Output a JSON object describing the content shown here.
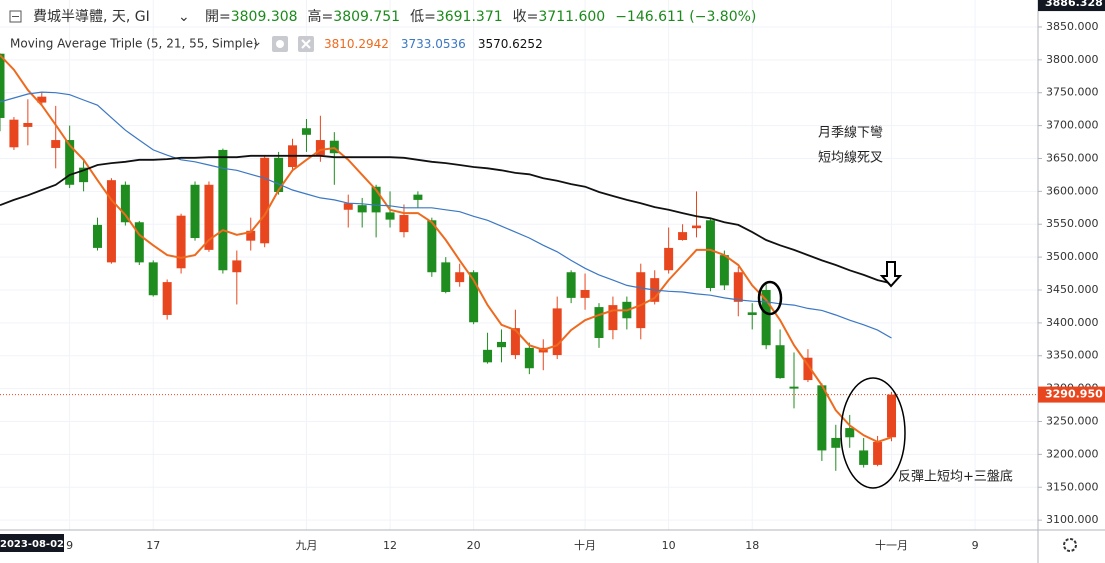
{
  "chart_data": {
    "type": "candlestick",
    "header": {
      "symbol": "費城半導體, 天, GI",
      "quote": [
        {
          "label": "開=",
          "value": "3809.308"
        },
        {
          "label": "高=",
          "value": "3809.751"
        },
        {
          "label": "低=",
          "value": "3691.371"
        },
        {
          "label": "收=",
          "value": "3711.600"
        }
      ],
      "change": "−146.611 (−3.80%)",
      "color": "#1b8a1b"
    },
    "indicator": {
      "title": "Moving Average Triple (5, 21, 55, Simple)",
      "readouts": [
        "3810.2942",
        "3733.0536",
        "3570.6252"
      ]
    },
    "categories": [
      "2023-08-02",
      null,
      null,
      null,
      null,
      "9",
      null,
      null,
      null,
      null,
      null,
      "17",
      null,
      null,
      null,
      null,
      null,
      null,
      null,
      null,
      null,
      null,
      "九月",
      null,
      null,
      null,
      null,
      null,
      "12",
      null,
      null,
      null,
      null,
      null,
      "20",
      null,
      null,
      null,
      null,
      null,
      null,
      null,
      "十月",
      null,
      null,
      null,
      null,
      null,
      "10",
      null,
      null,
      null,
      null,
      null,
      "18",
      null,
      null,
      null,
      null,
      null,
      null,
      null,
      null,
      null,
      "十一月",
      null,
      null,
      null,
      null,
      null,
      "9"
    ],
    "open": [
      3809.308,
      3667,
      3698,
      3735,
      3666,
      3678,
      3636,
      3549,
      3492,
      3610,
      3553,
      3492,
      3412,
      3483,
      3610,
      3511,
      3663,
      3477,
      3525,
      3521,
      3651,
      3637,
      3696,
      3655,
      3677,
      3572,
      3579,
      3607,
      3568,
      3538,
      3595,
      3556,
      3492,
      3462,
      3477,
      3359,
      3371,
      3351,
      3362,
      3355,
      3351,
      3477,
      3438,
      3424,
      3389,
      3432,
      3392,
      3432,
      3480,
      3526,
      3544,
      3556,
      3503,
      3432,
      3416,
      3450,
      3366,
      3303,
      3313,
      3305,
      3225,
      3240,
      3206,
      3184,
      3226,
      null,
      null,
      null,
      null,
      null,
      null
    ],
    "high": [
      3809.751,
      3713,
      3740,
      3750,
      3730,
      3700,
      3650,
      3560,
      3620,
      3615,
      3555,
      3495,
      3466,
      3566,
      3615,
      3615,
      3665,
      3510,
      3560,
      3655,
      3660,
      3680,
      3710,
      3715,
      3690,
      3595,
      3590,
      3610,
      3600,
      3580,
      3600,
      3560,
      3500,
      3490,
      3480,
      3385,
      3390,
      3420,
      3370,
      3375,
      3440,
      3480,
      3475,
      3430,
      3440,
      3440,
      3490,
      3480,
      3545,
      3550,
      3600,
      3560,
      3510,
      3485,
      3430,
      3460,
      3390,
      3355,
      3360,
      3308,
      3245,
      3260,
      3225,
      3228,
      3295,
      null,
      null,
      null,
      null,
      null,
      null
    ],
    "low": [
      3691.371,
      3663,
      3670,
      3730,
      3635,
      3605,
      3600,
      3510,
      3490,
      3548,
      3488,
      3440,
      3405,
      3475,
      3525,
      3508,
      3475,
      3428,
      3510,
      3515,
      3595,
      3630,
      3660,
      3645,
      3610,
      3545,
      3545,
      3530,
      3545,
      3530,
      3575,
      3470,
      3445,
      3455,
      3398,
      3338,
      3340,
      3345,
      3322,
      3328,
      3345,
      3430,
      3420,
      3362,
      3375,
      3390,
      3375,
      3428,
      3475,
      3525,
      3530,
      3448,
      3450,
      3410,
      3390,
      3360,
      3315,
      3270,
      3310,
      3190,
      3175,
      3210,
      3180,
      3182,
      3220,
      null,
      null,
      null,
      null,
      null,
      null
    ],
    "close": [
      3711.6,
      3709,
      3704,
      3744,
      3678,
      3610,
      3614,
      3514,
      3617,
      3553,
      3492,
      3442,
      3462,
      3563,
      3529,
      3610,
      3480,
      3495,
      3540,
      3651,
      3599,
      3670,
      3686,
      3678,
      3658,
      3582,
      3568,
      3568,
      3557,
      3564,
      3587,
      3477,
      3447,
      3477,
      3401,
      3340,
      3363,
      3392,
      3331,
      3362,
      3422,
      3438,
      3450,
      3377,
      3427,
      3407,
      3477,
      3468,
      3514,
      3538,
      3548,
      3453,
      3457,
      3477,
      3412,
      3366,
      3316,
      3300,
      3347,
      3206,
      3210,
      3226,
      3184,
      3219,
      3290.95,
      null,
      null,
      null,
      null,
      null,
      null
    ],
    "up_color": "#e8461e",
    "down_color": "#1e8c1e",
    "series": [
      {
        "color": "#ee6a1e",
        "values": [
          3807,
          3785,
          3754,
          3731,
          3701,
          3670,
          3648,
          3617,
          3587,
          3564,
          3534,
          3518,
          3503,
          3499,
          3503,
          3526,
          3541,
          3534,
          3538,
          3564,
          3602,
          3632,
          3648,
          3663,
          3666,
          3648,
          3625,
          3602,
          3572,
          3567,
          3567,
          3553,
          3526,
          3495,
          3465,
          3427,
          3397,
          3389,
          3366,
          3359,
          3366,
          3389,
          3404,
          3412,
          3419,
          3419,
          3427,
          3438,
          3465,
          3488,
          3511,
          3511,
          3503,
          3488,
          3457,
          3435,
          3404,
          3366,
          3336,
          3305,
          3267,
          3244,
          3229,
          3219,
          3226,
          null,
          null,
          null,
          null,
          null,
          null
        ]
      },
      {
        "color": "#3b78c4",
        "values": [
          3736,
          3742,
          3748,
          3751,
          3750,
          3747,
          3739,
          3731,
          3712,
          3693,
          3678,
          3663,
          3655,
          3648,
          3645,
          3640,
          3635,
          3632,
          3626,
          3620,
          3611,
          3602,
          3596,
          3590,
          3587,
          3582,
          3581,
          3579,
          3578,
          3575,
          3575,
          3575,
          3572,
          3569,
          3562,
          3556,
          3547,
          3538,
          3529,
          3518,
          3508,
          3495,
          3483,
          3473,
          3465,
          3457,
          3453,
          3450,
          3448,
          3447,
          3444,
          3442,
          3438,
          3435,
          3433,
          3432,
          3429,
          3427,
          3422,
          3419,
          3412,
          3404,
          3397,
          3389,
          3377,
          null,
          null,
          null,
          null,
          null,
          null
        ]
      },
      {
        "color": "#111111",
        "values": [
          3579,
          3587,
          3594,
          3602,
          3610,
          3625,
          3632,
          3640,
          3643,
          3645,
          3648,
          3648,
          3649,
          3651,
          3651,
          3652,
          3652,
          3652,
          3654,
          3654,
          3654,
          3654,
          3654,
          3654,
          3652,
          3652,
          3652,
          3652,
          3652,
          3651,
          3648,
          3645,
          3643,
          3640,
          3637,
          3635,
          3632,
          3628,
          3626,
          3620,
          3616,
          3611,
          3607,
          3599,
          3593,
          3587,
          3582,
          3576,
          3572,
          3567,
          3562,
          3559,
          3553,
          3549,
          3538,
          3526,
          3518,
          3511,
          3503,
          3495,
          3488,
          3480,
          3473,
          3465,
          3460,
          null,
          null,
          null,
          null,
          null,
          null
        ]
      }
    ],
    "ylim": [
      3085,
      3891
    ],
    "yticks": [
      {
        "value": 3100,
        "label": "3100.000"
      },
      {
        "value": 3150,
        "label": "3150.000"
      },
      {
        "value": 3200,
        "label": "3200.000"
      },
      {
        "value": 3250,
        "label": "3250.000"
      },
      {
        "value": 3300,
        "label": "3300.000"
      },
      {
        "value": 3350,
        "label": "3350.000"
      },
      {
        "value": 3400,
        "label": "3400.000"
      },
      {
        "value": 3450,
        "label": "3450.000"
      },
      {
        "value": 3500,
        "label": "3500.000"
      },
      {
        "value": 3550,
        "label": "3550.000"
      },
      {
        "value": 3600,
        "label": "3600.000"
      },
      {
        "value": 3650,
        "label": "3650.000"
      },
      {
        "value": 3700,
        "label": "3700.000"
      },
      {
        "value": 3750,
        "label": "3750.000"
      },
      {
        "value": 3800,
        "label": "3800.000"
      },
      {
        "value": 3850,
        "label": "3850.000"
      }
    ],
    "grid": true,
    "last_price": {
      "value": 3290.95,
      "label": "3290.950",
      "color": "#e8461e"
    },
    "crosshair_price": {
      "value": 3886.328,
      "label": "3886.328"
    },
    "annotations": [
      "月季線下彎",
      "短均線死叉",
      "反彈上短均+三盤底"
    ]
  }
}
